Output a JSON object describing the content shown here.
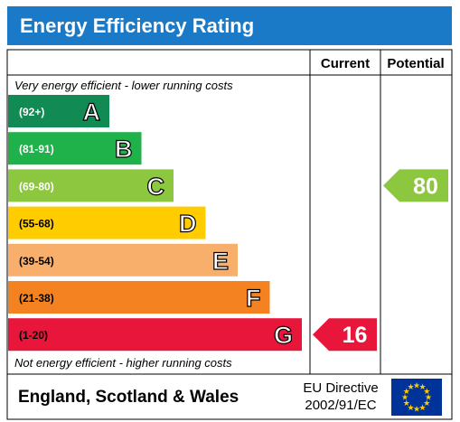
{
  "title": "Energy Efficiency Rating",
  "columns": {
    "current": "Current",
    "potential": "Potential"
  },
  "notes": {
    "top": "Very energy efficient - lower running costs",
    "bottom": "Not energy efficient - higher running costs"
  },
  "footer": {
    "region": "England, Scotland & Wales",
    "directive_line1": "EU Directive",
    "directive_line2": "2002/91/EC"
  },
  "chart_data": {
    "type": "bar",
    "categories": [
      "A",
      "B",
      "C",
      "D",
      "E",
      "F",
      "G"
    ],
    "ranges": [
      "(92+)",
      "(81-91)",
      "(69-80)",
      "(55-68)",
      "(39-54)",
      "(21-38)",
      "(1-20)"
    ],
    "colors": [
      "#118a54",
      "#1fb24a",
      "#8dc63f",
      "#ffcc00",
      "#f7af6b",
      "#f48221",
      "#e9163b"
    ],
    "current": {
      "value": 16,
      "band": "G",
      "color": "#e9163b"
    },
    "potential": {
      "value": 80,
      "band": "C",
      "color": "#8dc63f"
    }
  }
}
